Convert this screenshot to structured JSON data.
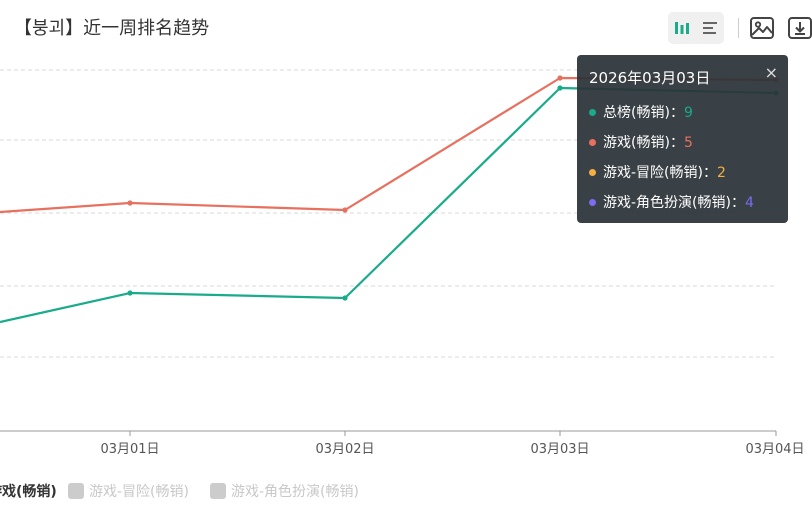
{
  "title": "【붕괴】近一周排名趋势",
  "toolbar": {
    "buttons": [
      {
        "name": "bar-chart-toggle-icon"
      },
      {
        "name": "list-view-toggle-icon"
      },
      {
        "name": "save-image-icon"
      },
      {
        "name": "download-icon"
      }
    ]
  },
  "tooltip": {
    "title": "2026年03月03日",
    "close_glyph": "×",
    "separator": "：",
    "rows": [
      {
        "label": "总榜(畅销)",
        "value": "9",
        "color": "#1aab8a"
      },
      {
        "label": "游戏(畅销)",
        "value": "5",
        "color": "#e8705f"
      },
      {
        "label": "游戏-冒险(畅销)",
        "value": "2",
        "color": "#f5b041"
      },
      {
        "label": "游戏-角色扮演(畅销)",
        "value": "4",
        "color": "#7b6cf0"
      }
    ]
  },
  "legend": {
    "items": [
      {
        "label": "游戏(畅销)",
        "active": true,
        "color": "#e8705f",
        "inactive_color": "#cccccc"
      },
      {
        "label": "游戏-冒险(畅销)",
        "active": false,
        "color": "#f5b041",
        "inactive_color": "#cccccc"
      },
      {
        "label": "游戏-角色扮演(畅销)",
        "active": false,
        "color": "#7b6cf0",
        "inactive_color": "#cccccc"
      }
    ]
  },
  "chart_data": {
    "type": "line",
    "x": [
      "03月01日",
      "03月02日",
      "03月03日",
      "03月04日"
    ],
    "y_inverted": true,
    "grid": true,
    "series": [
      {
        "name": "总榜(畅销)",
        "color": "#1aab8a",
        "values": [
          29,
          29,
          9,
          9
        ],
        "leading_value": 31
      },
      {
        "name": "游戏(畅销)",
        "color": "#e8705f",
        "values": [
          17,
          17,
          5,
          5
        ],
        "leading_value": 17
      }
    ]
  }
}
